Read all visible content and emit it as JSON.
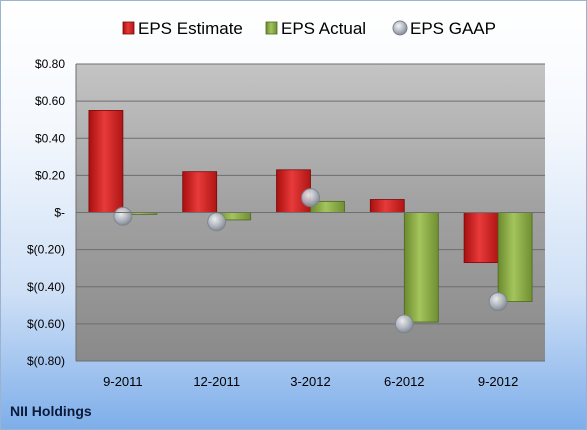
{
  "footer": {
    "company": "NII Holdings"
  },
  "chart_data": {
    "type": "bar",
    "categories": [
      "9-2011",
      "12-2011",
      "3-2012",
      "6-2012",
      "9-2012"
    ],
    "series": [
      {
        "name": "EPS Estimate",
        "values": [
          0.55,
          0.22,
          0.23,
          0.07,
          -0.27
        ],
        "color": "#d42a2a"
      },
      {
        "name": "EPS Actual",
        "values": [
          -0.01,
          -0.04,
          0.06,
          -0.59,
          -0.48
        ],
        "color": "#8fb04a"
      }
    ],
    "scatter": {
      "name": "EPS GAAP",
      "values": [
        -0.02,
        -0.05,
        0.08,
        -0.6,
        -0.48
      ],
      "color": "#b8bec8"
    },
    "ylim": [
      -0.8,
      0.8
    ],
    "yticks": [
      0.8,
      0.6,
      0.4,
      0.2,
      0,
      -0.2,
      -0.4,
      -0.6,
      -0.8
    ],
    "ytick_labels": [
      "$0.80",
      "$0.60",
      "$0.40",
      "$0.20",
      "$-",
      "$(0.20)",
      "$(0.40)",
      "$(0.60)",
      "$(0.80)"
    ],
    "grid": true,
    "legend": "top"
  }
}
